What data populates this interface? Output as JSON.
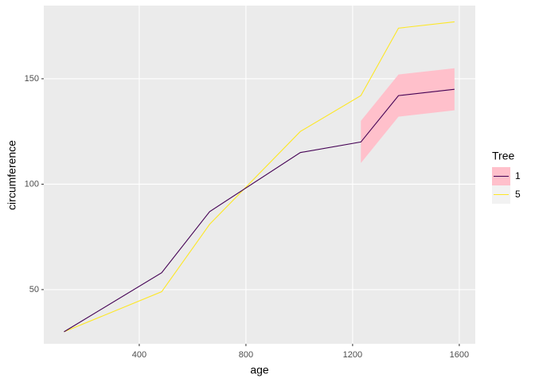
{
  "chart_data": {
    "type": "line",
    "x_label": "age",
    "y_label": "circumference",
    "legend_title": "Tree",
    "series": [
      {
        "name": "1",
        "color": "#440154",
        "x": [
          118,
          484,
          664,
          1004,
          1231,
          1372,
          1582
        ],
        "values": [
          30,
          58,
          87,
          115,
          120,
          142,
          145
        ]
      },
      {
        "name": "5",
        "color": "#fde725",
        "x": [
          118,
          484,
          664,
          1004,
          1231,
          1372,
          1582
        ],
        "values": [
          30,
          49,
          81,
          125,
          142,
          174,
          177
        ]
      }
    ],
    "ribbon": {
      "series": 0,
      "color": "#ffc0cb",
      "x": [
        1231,
        1372,
        1582
      ],
      "lower": [
        110,
        132,
        135
      ],
      "upper": [
        130,
        152,
        155
      ]
    },
    "xlim": [
      42,
      1660
    ],
    "ylim": [
      24.3,
      184.7
    ],
    "xticks": [
      400,
      800,
      1200,
      1600
    ],
    "yticks": [
      50,
      100,
      150
    ],
    "grid": true
  }
}
